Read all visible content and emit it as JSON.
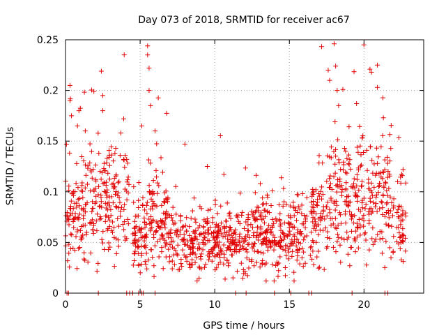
{
  "chart_data": {
    "type": "scatter",
    "title": "Day 073 of 2018, SRMTID for receiver ac67",
    "xlabel": "GPS time / hours",
    "ylabel": "SRMTID / TECUs",
    "xlim": [
      0,
      24
    ],
    "ylim": [
      0,
      0.25
    ],
    "x_ticks": [
      0,
      5,
      10,
      15,
      20
    ],
    "x_tick_labels": [
      "0",
      "5",
      "10",
      "15",
      "20"
    ],
    "y_ticks": [
      0,
      0.05,
      0.1,
      0.15,
      0.2,
      0.25
    ],
    "y_tick_labels": [
      "0",
      "0.05",
      "0.1",
      "0.15",
      "0.2",
      "0.25"
    ],
    "grid": true,
    "marker": "+",
    "color": "#e00000",
    "envelope": {
      "description": "approximate typical SRMTID level vs time (hours, TECU)",
      "x": [
        0,
        0.5,
        1,
        1.5,
        2,
        2.5,
        3,
        3.5,
        4,
        4.2,
        4.5,
        5,
        5.5,
        6,
        6.5,
        7,
        7.5,
        8,
        8.5,
        9,
        10,
        11,
        12,
        13,
        14,
        15,
        16,
        16.5,
        17,
        17.5,
        18,
        18.5,
        19,
        19.5,
        20,
        20.5,
        21,
        21.5,
        22,
        22.8
      ],
      "y": [
        0.085,
        0.08,
        0.078,
        0.085,
        0.08,
        0.09,
        0.095,
        0.095,
        0.1,
        0.09,
        0.055,
        0.06,
        0.07,
        0.075,
        0.07,
        0.062,
        0.055,
        0.05,
        0.052,
        0.055,
        0.052,
        0.05,
        0.055,
        0.06,
        0.055,
        0.055,
        0.06,
        0.07,
        0.085,
        0.095,
        0.1,
        0.095,
        0.085,
        0.09,
        0.1,
        0.095,
        0.1,
        0.09,
        0.075,
        0.075
      ]
    },
    "peaks": [
      {
        "x": 0.3,
        "y": 0.205
      },
      {
        "x": 0.3,
        "y": 0.19
      },
      {
        "x": 0.4,
        "y": 0.175
      },
      {
        "x": 0.8,
        "y": 0.165
      },
      {
        "x": 0.9,
        "y": 0.18
      },
      {
        "x": 1.9,
        "y": 0.199
      },
      {
        "x": 2.4,
        "y": 0.219
      },
      {
        "x": 2.5,
        "y": 0.195
      },
      {
        "x": 2.5,
        "y": 0.18
      },
      {
        "x": 3.9,
        "y": 0.172
      },
      {
        "x": 5.5,
        "y": 0.244
      },
      {
        "x": 5.5,
        "y": 0.235
      },
      {
        "x": 5.6,
        "y": 0.222
      },
      {
        "x": 5.6,
        "y": 0.2
      },
      {
        "x": 5.7,
        "y": 0.185
      },
      {
        "x": 6.0,
        "y": 0.16
      },
      {
        "x": 8.0,
        "y": 0.147
      },
      {
        "x": 9.5,
        "y": 0.125
      },
      {
        "x": 17.6,
        "y": 0.22
      },
      {
        "x": 17.7,
        "y": 0.21
      },
      {
        "x": 18.0,
        "y": 0.246
      },
      {
        "x": 18.1,
        "y": 0.224
      },
      {
        "x": 18.2,
        "y": 0.2
      },
      {
        "x": 18.3,
        "y": 0.185
      },
      {
        "x": 20.4,
        "y": 0.221
      },
      {
        "x": 20.5,
        "y": 0.218
      },
      {
        "x": 20.9,
        "y": 0.225
      },
      {
        "x": 20.9,
        "y": 0.203
      },
      {
        "x": 21.3,
        "y": 0.173
      }
    ],
    "zero_points_x": [
      0.1,
      0.2,
      2.2,
      4.1,
      4.3,
      4.5,
      4.9,
      5.1,
      5.2,
      6.0,
      11.4,
      12.1,
      14.0,
      15.1,
      16.3,
      16.5,
      19.2,
      21.4,
      21.6
    ]
  }
}
